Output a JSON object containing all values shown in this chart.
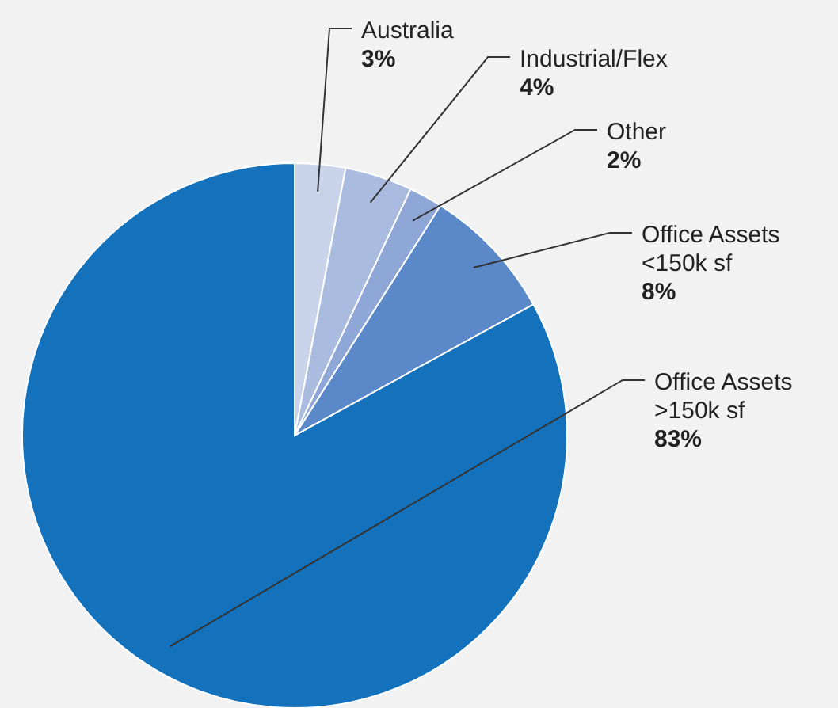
{
  "chart_data": {
    "type": "pie",
    "categories": [
      "Australia",
      "Industrial/Flex",
      "Other",
      "Office Assets <150k sf",
      "Office Assets >150k sf"
    ],
    "values": [
      3,
      4,
      2,
      8,
      83
    ],
    "colors": [
      "#c9d3ea",
      "#aabbe0",
      "#8fa7d7",
      "#5a88c9",
      "#1372bb"
    ],
    "value_labels": [
      "3%",
      "4%",
      "2%",
      "8%",
      "83%"
    ]
  }
}
